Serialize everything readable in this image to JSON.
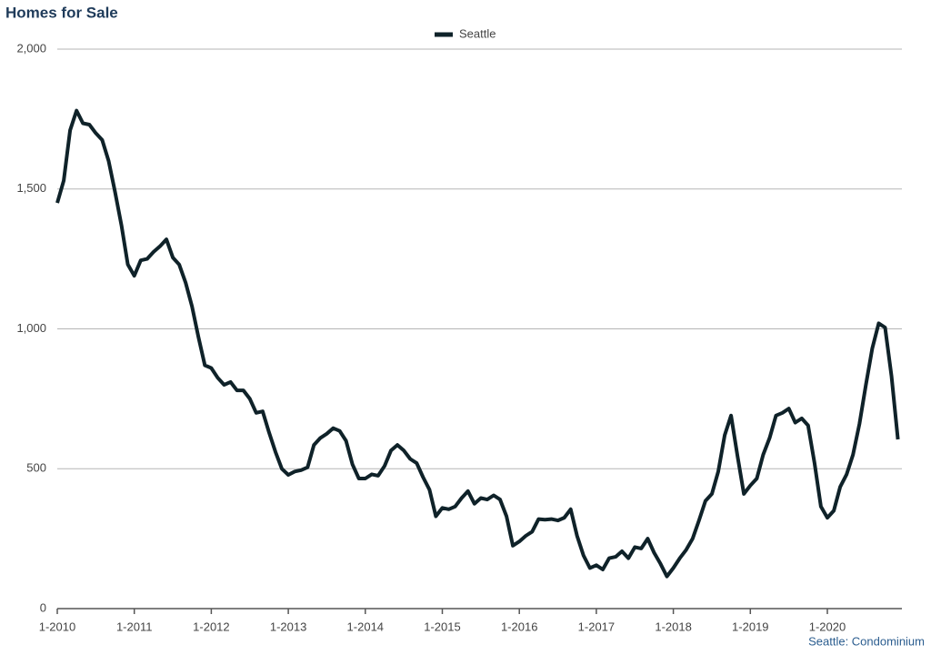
{
  "chart_data": {
    "type": "line",
    "title": "Homes for Sale",
    "note": "Seattle: Condominium",
    "categories": [
      "1-2010",
      null,
      null,
      null,
      null,
      null,
      null,
      null,
      null,
      null,
      null,
      null,
      "1-2011",
      null,
      null,
      null,
      null,
      null,
      null,
      null,
      null,
      null,
      null,
      null,
      "1-2012",
      null,
      null,
      null,
      null,
      null,
      null,
      null,
      null,
      null,
      null,
      null,
      "1-2013",
      null,
      null,
      null,
      null,
      null,
      null,
      null,
      null,
      null,
      null,
      null,
      "1-2014",
      null,
      null,
      null,
      null,
      null,
      null,
      null,
      null,
      null,
      null,
      null,
      "1-2015",
      null,
      null,
      null,
      null,
      null,
      null,
      null,
      null,
      null,
      null,
      null,
      "1-2016",
      null,
      null,
      null,
      null,
      null,
      null,
      null,
      null,
      null,
      null,
      null,
      "1-2017",
      null,
      null,
      null,
      null,
      null,
      null,
      null,
      null,
      null,
      null,
      null,
      "1-2018",
      null,
      null,
      null,
      null,
      null,
      null,
      null,
      null,
      null,
      null,
      null,
      "1-2019",
      null,
      null,
      null,
      null,
      null,
      null,
      null,
      null,
      null,
      null,
      null,
      "1-2020",
      null,
      null,
      null,
      null,
      null,
      null,
      null,
      null,
      null,
      null,
      null
    ],
    "series": [
      {
        "name": "Seattle",
        "color": "#0f2229",
        "values": [
          1450,
          1530,
          1710,
          1780,
          1735,
          1730,
          1700,
          1675,
          1600,
          1490,
          1370,
          1230,
          1190,
          1245,
          1250,
          1275,
          1295,
          1320,
          1255,
          1230,
          1165,
          1080,
          970,
          870,
          860,
          825,
          800,
          810,
          780,
          780,
          750,
          700,
          705,
          630,
          560,
          500,
          478,
          490,
          495,
          505,
          585,
          610,
          625,
          645,
          635,
          600,
          515,
          465,
          465,
          480,
          475,
          510,
          565,
          585,
          565,
          535,
          520,
          470,
          425,
          330,
          360,
          355,
          365,
          395,
          420,
          375,
          395,
          390,
          405,
          390,
          330,
          225,
          240,
          260,
          275,
          320,
          318,
          320,
          315,
          325,
          355,
          260,
          190,
          145,
          155,
          140,
          180,
          185,
          205,
          180,
          220,
          215,
          250,
          200,
          160,
          115,
          145,
          180,
          210,
          250,
          315,
          385,
          410,
          490,
          620,
          690,
          545,
          410,
          440,
          465,
          550,
          610,
          690,
          700,
          715,
          665,
          680,
          655,
          520,
          365,
          325,
          350,
          435,
          480,
          550,
          660,
          800,
          930,
          1020,
          1005,
          830,
          605
        ]
      }
    ],
    "ylim": [
      0,
      2000
    ],
    "yticks": [
      0,
      500,
      {
        "value": 1000,
        "label": "1,000"
      },
      {
        "value": 1500,
        "label": "1,500"
      },
      {
        "value": 2000,
        "label": "2,000"
      }
    ],
    "grid": true
  }
}
